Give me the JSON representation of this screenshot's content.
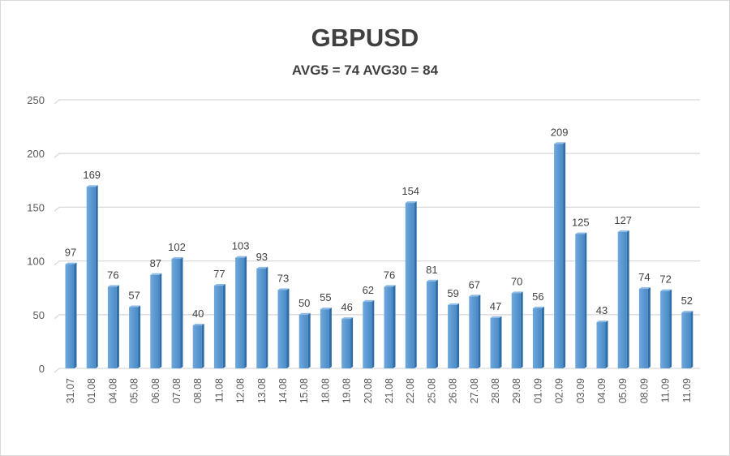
{
  "chart_data": {
    "type": "bar",
    "title": "GBPUSD",
    "subtitle": "AVG5 = 74 AVG30 = 84",
    "xlabel": "",
    "ylabel": "",
    "ylim": [
      0,
      250
    ],
    "yticks": [
      0,
      50,
      100,
      150,
      200,
      250
    ],
    "grid": true,
    "legend": "none",
    "bar_color": "#5b9bd5",
    "categories": [
      "31.07",
      "01.08",
      "04.08",
      "05.08",
      "06.08",
      "07.08",
      "08.08",
      "11.08",
      "12.08",
      "13.08",
      "14.08",
      "15.08",
      "18.08",
      "19.08",
      "20.08",
      "21.08",
      "22.08",
      "25.08",
      "26.08",
      "27.08",
      "28.08",
      "29.08",
      "01.09",
      "02.09",
      "03.09",
      "04.09",
      "05.09",
      "08.09",
      "11.09",
      "11.09"
    ],
    "values": [
      97,
      169,
      76,
      57,
      87,
      102,
      40,
      77,
      103,
      93,
      73,
      50,
      55,
      46,
      62,
      76,
      154,
      81,
      59,
      67,
      47,
      70,
      56,
      209,
      125,
      43,
      127,
      74,
      72,
      52
    ]
  }
}
